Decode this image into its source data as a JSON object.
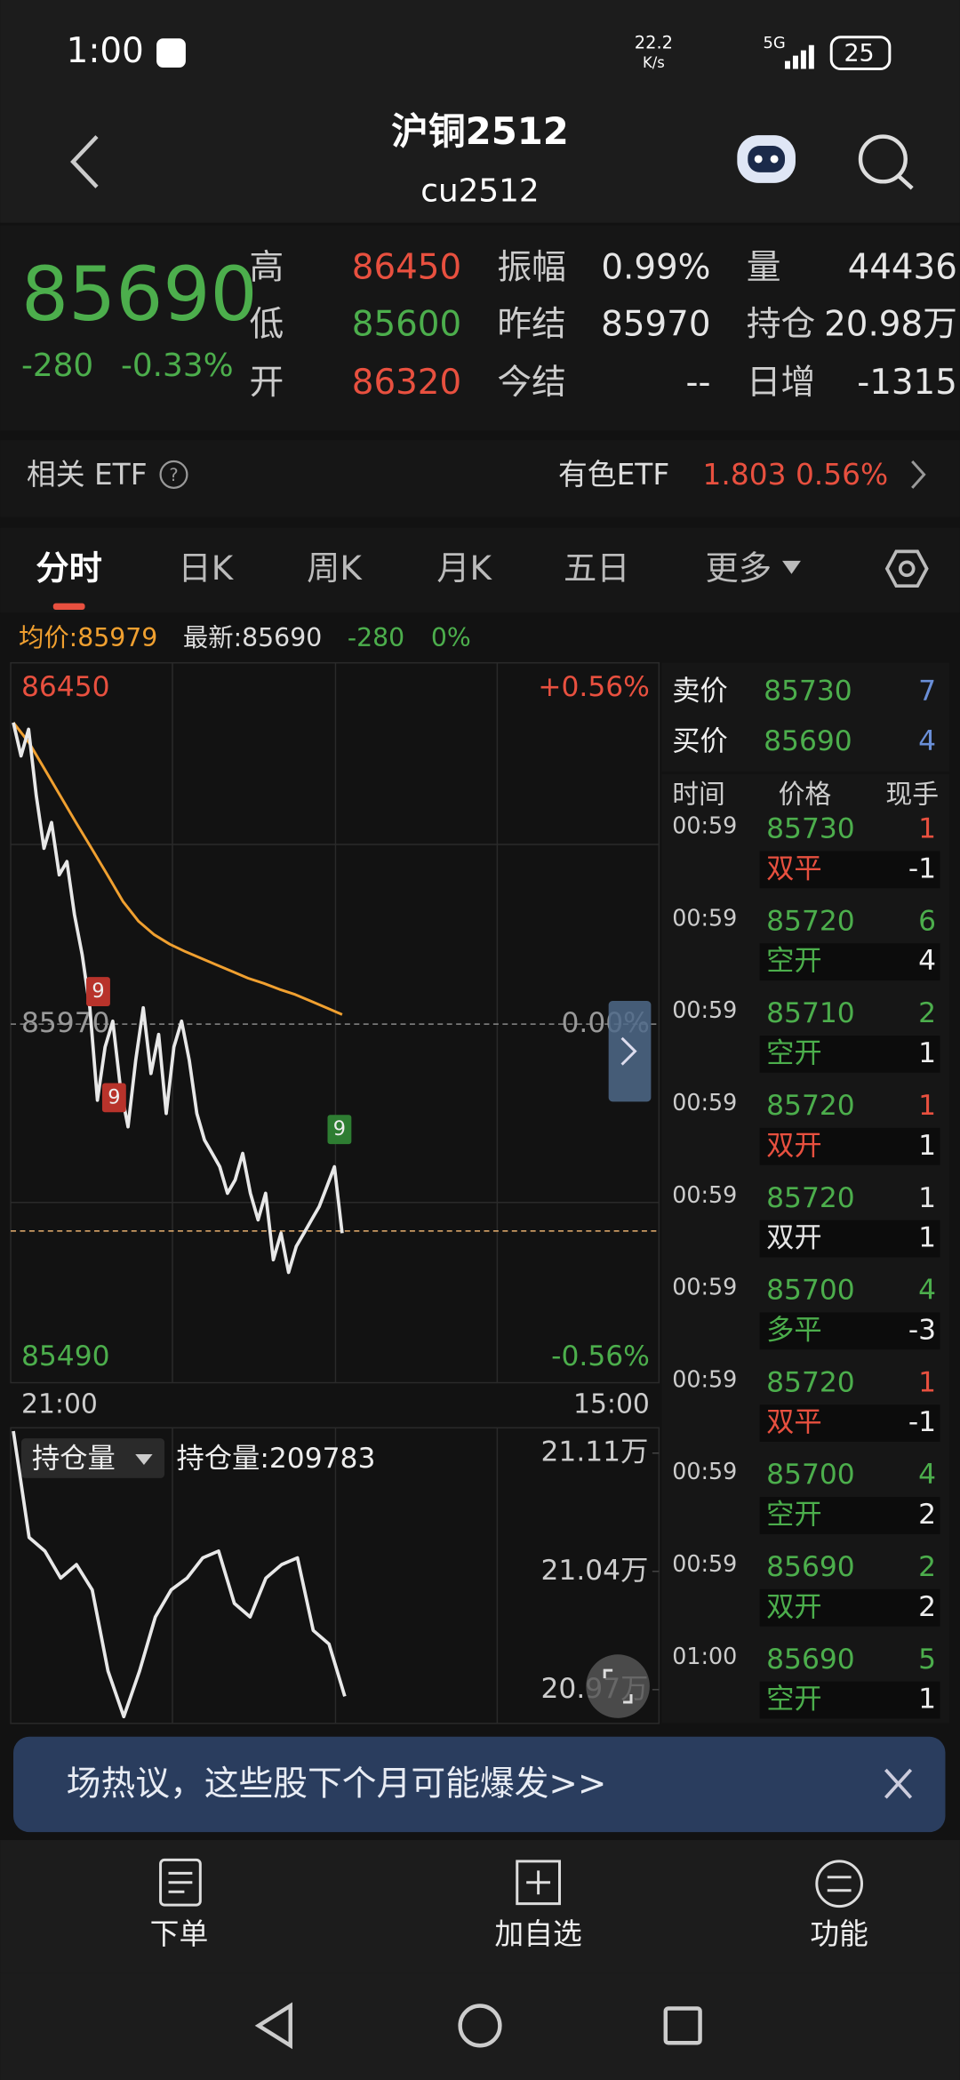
{
  "status_bar": {
    "time": "1:00",
    "net_speed": "22.2",
    "net_unit": "K/s",
    "signal": "5G",
    "battery": "25"
  },
  "header": {
    "title": "沪铜2512",
    "code": "cu2512"
  },
  "quote": {
    "price": 85690,
    "change": -280,
    "change_pct": "-0.33%",
    "color": "#4cae4c",
    "fields": [
      {
        "label": "高",
        "value": 86450,
        "color": "#e8503f"
      },
      {
        "label": "低",
        "value": 85600,
        "color": "#4cae4c"
      },
      {
        "label": "开",
        "value": 86320,
        "color": "#e8503f"
      },
      {
        "label": "振幅",
        "value": "0.99%",
        "color": "#e6e6e6"
      },
      {
        "label": "昨结",
        "value": 85970,
        "color": "#e6e6e6"
      },
      {
        "label": "今结",
        "value": "--",
        "color": "#e6e6e6"
      },
      {
        "label": "量",
        "value": 44436,
        "color": "#e6e6e6"
      },
      {
        "label": "持仓",
        "value": "20.98万",
        "color": "#e6e6e6"
      },
      {
        "label": "日增",
        "value": -1315,
        "color": "#e6e6e6"
      }
    ]
  },
  "etf": {
    "label": "相关 ETF",
    "name": "有色ETF",
    "price": 1.803,
    "pct": "0.56%"
  },
  "tabs": [
    "分时",
    "日K",
    "周K",
    "月K",
    "五日",
    "更多"
  ],
  "info": {
    "avg": "均价:85979",
    "last": "最新:85690",
    "change": -280,
    "pct": "0%"
  },
  "intraday": {
    "ylim": [
      85490,
      86450
    ],
    "ref": 85970,
    "last": 85690,
    "top_pct": "+0.56%",
    "mid_pct": "0.00%",
    "bottom_pct": "-0.56%",
    "start": "21:00",
    "end": "15:00",
    "price_color": "#e8e8e8",
    "avg_color": "#f0a030",
    "price": [
      86378,
      86333,
      86369,
      86279,
      86208,
      86243,
      86172,
      86190,
      86118,
      86064,
      85992,
      85867,
      85939,
      85974,
      85885,
      85831,
      85921,
      85992,
      85903,
      85956,
      85849,
      85939,
      85974,
      85921,
      85849,
      85813,
      85795,
      85777,
      85741,
      85759,
      85795,
      85741,
      85705,
      85741,
      85651,
      85687,
      85634,
      85669,
      85687,
      85705,
      85723,
      85750,
      85777,
      85687
    ],
    "avg": [
      86378,
      86351,
      86315,
      86279,
      86243,
      86208,
      86172,
      86136,
      86109,
      86091,
      86078,
      86068,
      86059,
      86050,
      86041,
      86032,
      86025,
      86017,
      86010,
      86001,
      85992,
      85983
    ],
    "signals": [
      "9",
      "9",
      "9"
    ]
  },
  "open_interest": {
    "selector": "持仓量",
    "label": "持仓量:209783",
    "ylim": [
      20.95,
      21.125
    ],
    "yticks": [
      {
        "value": 21.11,
        "label": "21.11万"
      },
      {
        "value": 21.04,
        "label": "21.04万"
      },
      {
        "value": 20.97,
        "label": "20.97万"
      }
    ],
    "values": [
      21.123,
      21.06,
      21.052,
      21.036,
      21.044,
      21.029,
      20.981,
      20.954,
      20.981,
      21.013,
      21.029,
      21.036,
      21.048,
      21.052,
      21.021,
      21.013,
      21.036,
      21.044,
      21.048,
      21.005,
      20.997,
      20.966
    ]
  },
  "order_book": {
    "ask_label": "卖价",
    "ask_price": 85730,
    "ask_vol": 7,
    "bid_label": "买价",
    "bid_price": 85690,
    "bid_vol": 4
  },
  "trades": {
    "columns": [
      "时间",
      "价格",
      "现手"
    ],
    "rows": [
      {
        "time": "00:59",
        "price": 85730,
        "vol": 1,
        "vol_color": "#e8503f",
        "type": "双平",
        "type_color": "#e8503f",
        "change": -1
      },
      {
        "time": "00:59",
        "price": 85720,
        "vol": 6,
        "vol_color": "#4cae4c",
        "type": "空开",
        "type_color": "#4cae4c",
        "change": 4
      },
      {
        "time": "00:59",
        "price": 85710,
        "vol": 2,
        "vol_color": "#4cae4c",
        "type": "空开",
        "type_color": "#4cae4c",
        "change": 1
      },
      {
        "time": "00:59",
        "price": 85720,
        "vol": 1,
        "vol_color": "#e8503f",
        "type": "双开",
        "type_color": "#e8503f",
        "change": 1
      },
      {
        "time": "00:59",
        "price": 85720,
        "vol": 1,
        "vol_color": "#e6e6e6",
        "type": "双开",
        "type_color": "#e6e6e6",
        "change": 1
      },
      {
        "time": "00:59",
        "price": 85700,
        "vol": 4,
        "vol_color": "#4cae4c",
        "type": "多平",
        "type_color": "#4cae4c",
        "change": -3
      },
      {
        "time": "00:59",
        "price": 85720,
        "vol": 1,
        "vol_color": "#e8503f",
        "type": "双平",
        "type_color": "#e8503f",
        "change": -1
      },
      {
        "time": "00:59",
        "price": 85700,
        "vol": 4,
        "vol_color": "#4cae4c",
        "type": "空开",
        "type_color": "#4cae4c",
        "change": 2
      },
      {
        "time": "00:59",
        "price": 85690,
        "vol": 2,
        "vol_color": "#4cae4c",
        "type": "双开",
        "type_color": "#4cae4c",
        "change": 2
      },
      {
        "time": "01:00",
        "price": 85690,
        "vol": 5,
        "vol_color": "#4cae4c",
        "type": "空开",
        "type_color": "#4cae4c",
        "change": 1
      }
    ]
  },
  "banner": {
    "text": "场热议，这些股下个月可能爆发>>"
  },
  "toolbar": [
    "下单",
    "加自选",
    "功能"
  ]
}
